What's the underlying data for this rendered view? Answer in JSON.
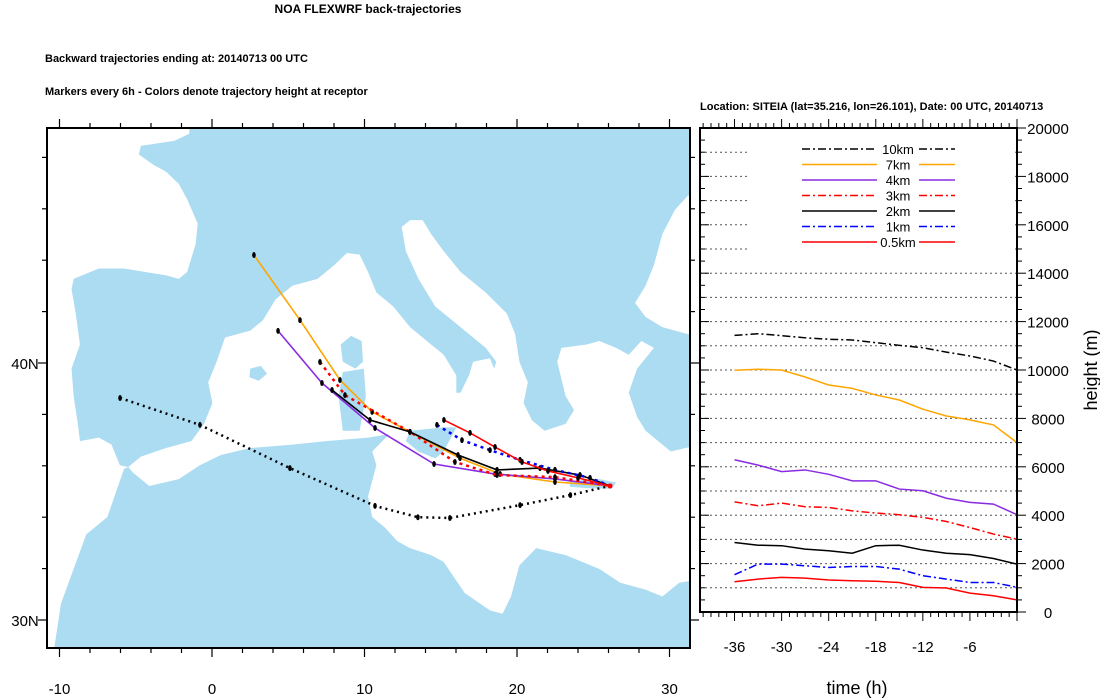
{
  "title": "NOA FLEXWRF back-trajectories",
  "subtitle_1": "Backward trajectories ending at: 20140713  00 UTC",
  "subtitle_2": "Markers every 6h - Colors denote trajectory height at receptor",
  "location_label": "Location: SITEIA (lat=35.216,  lon=26.101), Date: 00 UTC, 20140713",
  "colors": {
    "land": "#acdcf2",
    "sea": "#ffffff"
  },
  "chart_data": [
    {
      "type": "line",
      "title": "Trajectory map",
      "xlabel": "",
      "ylabel": "",
      "xlim": [
        -10.85,
        31.3
      ],
      "ylim": [
        28.9,
        49.1
      ],
      "x_ticks": [
        "-10",
        "0",
        "10",
        "20",
        "30"
      ],
      "y_ticks": [
        "30N",
        "40N"
      ],
      "receptor": {
        "lon": 26.101,
        "lat": 35.216
      },
      "series": [
        {
          "name": "10km",
          "color": "#000000",
          "dash": "2,4",
          "points": [
            [
              -6.03,
              38.64
            ],
            [
              -0.79,
              37.59
            ],
            [
              5.11,
              35.91
            ],
            [
              10.69,
              34.44
            ],
            [
              13.5,
              34.0
            ],
            [
              15.6,
              33.97
            ],
            [
              20.2,
              34.47
            ],
            [
              23.5,
              34.86
            ],
            [
              26.1,
              35.22
            ]
          ]
        },
        {
          "name": "7km",
          "color": "#ffa500",
          "dash": "",
          "points": [
            [
              2.75,
              44.2
            ],
            [
              5.77,
              41.67
            ],
            [
              8.39,
              39.34
            ],
            [
              10.5,
              38.1
            ],
            [
              12.98,
              37.32
            ],
            [
              16.26,
              36.3
            ],
            [
              18.89,
              35.68
            ],
            [
              22.49,
              35.37
            ],
            [
              26.1,
              35.22
            ]
          ]
        },
        {
          "name": "4km",
          "color": "#8a2be2",
          "dash": "",
          "points": [
            [
              4.33,
              41.25
            ],
            [
              7.21,
              39.22
            ],
            [
              10.69,
              37.47
            ],
            [
              14.56,
              36.07
            ],
            [
              18.56,
              35.68
            ],
            [
              22.49,
              35.49
            ],
            [
              26.1,
              35.22
            ]
          ]
        },
        {
          "name": "3km",
          "color": "#ff0000",
          "dash": "3,4",
          "points": [
            [
              7.08,
              40.04
            ],
            [
              8.72,
              38.75
            ],
            [
              12.98,
              37.32
            ],
            [
              15.93,
              36.15
            ],
            [
              18.69,
              35.64
            ],
            [
              22.49,
              35.56
            ],
            [
              26.1,
              35.22
            ]
          ]
        },
        {
          "name": "2km",
          "color": "#000000",
          "dash": "",
          "points": [
            [
              7.87,
              38.95
            ],
            [
              10.36,
              37.78
            ],
            [
              12.98,
              37.32
            ],
            [
              16.13,
              36.42
            ],
            [
              18.69,
              35.84
            ],
            [
              21.51,
              35.91
            ],
            [
              24.13,
              35.64
            ],
            [
              26.1,
              35.22
            ]
          ]
        },
        {
          "name": "1km",
          "color": "#0000ff",
          "dash": "3,4",
          "points": [
            [
              14.75,
              37.59
            ],
            [
              16.39,
              37.0
            ],
            [
              18.23,
              36.61
            ],
            [
              20.2,
              36.23
            ],
            [
              22.49,
              35.84
            ],
            [
              24.79,
              35.53
            ],
            [
              26.1,
              35.22
            ]
          ]
        },
        {
          "name": "0.5km",
          "color": "#ff0000",
          "dash": "",
          "points": [
            [
              15.21,
              37.78
            ],
            [
              16.92,
              37.28
            ],
            [
              18.56,
              36.73
            ],
            [
              20.33,
              36.15
            ],
            [
              22.03,
              35.8
            ],
            [
              24.0,
              35.53
            ],
            [
              26.1,
              35.22
            ]
          ]
        }
      ]
    },
    {
      "type": "line",
      "title": "",
      "xlabel": "time (h)",
      "ylabel": "height (m)",
      "xlim": [
        -40.4,
        0
      ],
      "ylim": [
        0,
        20000
      ],
      "x_ticks": [
        -36,
        -30,
        -24,
        -18,
        -12,
        -6
      ],
      "y_ticks": [
        0,
        2000,
        4000,
        6000,
        8000,
        10000,
        12000,
        14000,
        16000,
        18000,
        20000
      ],
      "grid": "horizontal dotted every 1000 m",
      "legend": "top-center",
      "x": [
        -36,
        -33,
        -30,
        -27,
        -24,
        -21,
        -18,
        -15,
        -12,
        -9,
        -6,
        -3,
        0
      ],
      "series": [
        {
          "name": "10km",
          "color": "#000000",
          "dash": "8,3,2,3",
          "values": [
            11430,
            11500,
            11420,
            11330,
            11270,
            11240,
            11130,
            11020,
            10920,
            10740,
            10580,
            10370,
            10000
          ]
        },
        {
          "name": "7km",
          "color": "#ffa500",
          "dash": "",
          "values": [
            9990,
            10030,
            10000,
            9710,
            9380,
            9240,
            8970,
            8760,
            8380,
            8100,
            7940,
            7730,
            7000
          ]
        },
        {
          "name": "4km",
          "color": "#8a2be2",
          "dash": "",
          "values": [
            6290,
            6070,
            5800,
            5870,
            5690,
            5420,
            5420,
            5080,
            5010,
            4700,
            4530,
            4460,
            4020
          ]
        },
        {
          "name": "3km",
          "color": "#ff0000",
          "dash": "8,3,2,3",
          "values": [
            4550,
            4390,
            4500,
            4350,
            4320,
            4180,
            4090,
            4020,
            3910,
            3740,
            3490,
            3220,
            3010
          ]
        },
        {
          "name": "2km",
          "color": "#000000",
          "dash": "",
          "values": [
            2870,
            2760,
            2740,
            2600,
            2530,
            2430,
            2740,
            2760,
            2560,
            2430,
            2370,
            2210,
            1980
          ]
        },
        {
          "name": "1km",
          "color": "#0000ff",
          "dash": "8,3,2,3",
          "values": [
            1540,
            1980,
            1980,
            1910,
            1840,
            1880,
            1880,
            1770,
            1500,
            1360,
            1220,
            1220,
            1020
          ]
        },
        {
          "name": "0.5km",
          "color": "#ff0000",
          "dash": "",
          "values": [
            1250,
            1360,
            1430,
            1400,
            1320,
            1290,
            1270,
            1220,
            1020,
            990,
            780,
            670,
            500
          ]
        }
      ]
    }
  ]
}
